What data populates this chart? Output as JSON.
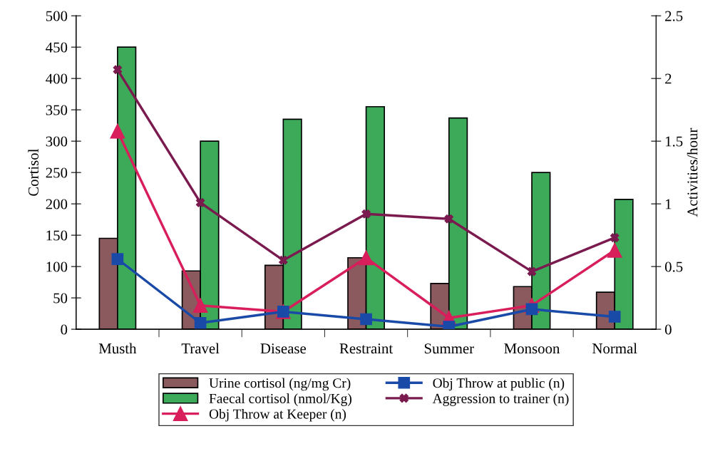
{
  "chart_data": {
    "type": "bar",
    "categories": [
      "Musth",
      "Travel",
      "Disease",
      "Restraint",
      "Summer",
      "Monsoon",
      "Normal"
    ],
    "ylabel": "Cortisol",
    "y2label": "Activities/hour",
    "ylim": [
      0,
      500
    ],
    "yticks": [
      0,
      50,
      100,
      150,
      200,
      250,
      300,
      350,
      400,
      450,
      500
    ],
    "y2lim": [
      0,
      2.5
    ],
    "y2ticks": [
      0,
      0.5,
      1,
      1.5,
      2,
      2.5
    ],
    "grid": false,
    "legend": "bottom",
    "series": [
      {
        "name": "Urine cortisol (ng/mg Cr)",
        "color": "#8a5a5e",
        "values": [
          145,
          93,
          102,
          114,
          73,
          68,
          59
        ]
      },
      {
        "name": "Faecal cortisol (nmol/Kg)",
        "color": "#3daa5a",
        "values": [
          450,
          300,
          335,
          355,
          337,
          250,
          207
        ]
      },
      {
        "name": "Obj Throw at Keeper (n)",
        "type": "line",
        "axis": "y2",
        "marker": "triangle",
        "color": "#d81e5b",
        "values": [
          1.58,
          0.19,
          0.14,
          0.57,
          0.09,
          0.19,
          0.63
        ]
      },
      {
        "name": "Obj Throw at public (n)",
        "type": "line",
        "axis": "y2",
        "marker": "square",
        "color": "#1a4aa8",
        "values": [
          0.56,
          0.05,
          0.14,
          0.08,
          0.02,
          0.16,
          0.1
        ]
      },
      {
        "name": "Aggression to trainer (n)",
        "type": "line",
        "axis": "y2",
        "marker": "cross",
        "color": "#7a1a4e",
        "values": [
          2.07,
          1.01,
          0.55,
          0.92,
          0.88,
          0.46,
          0.73
        ]
      }
    ]
  }
}
